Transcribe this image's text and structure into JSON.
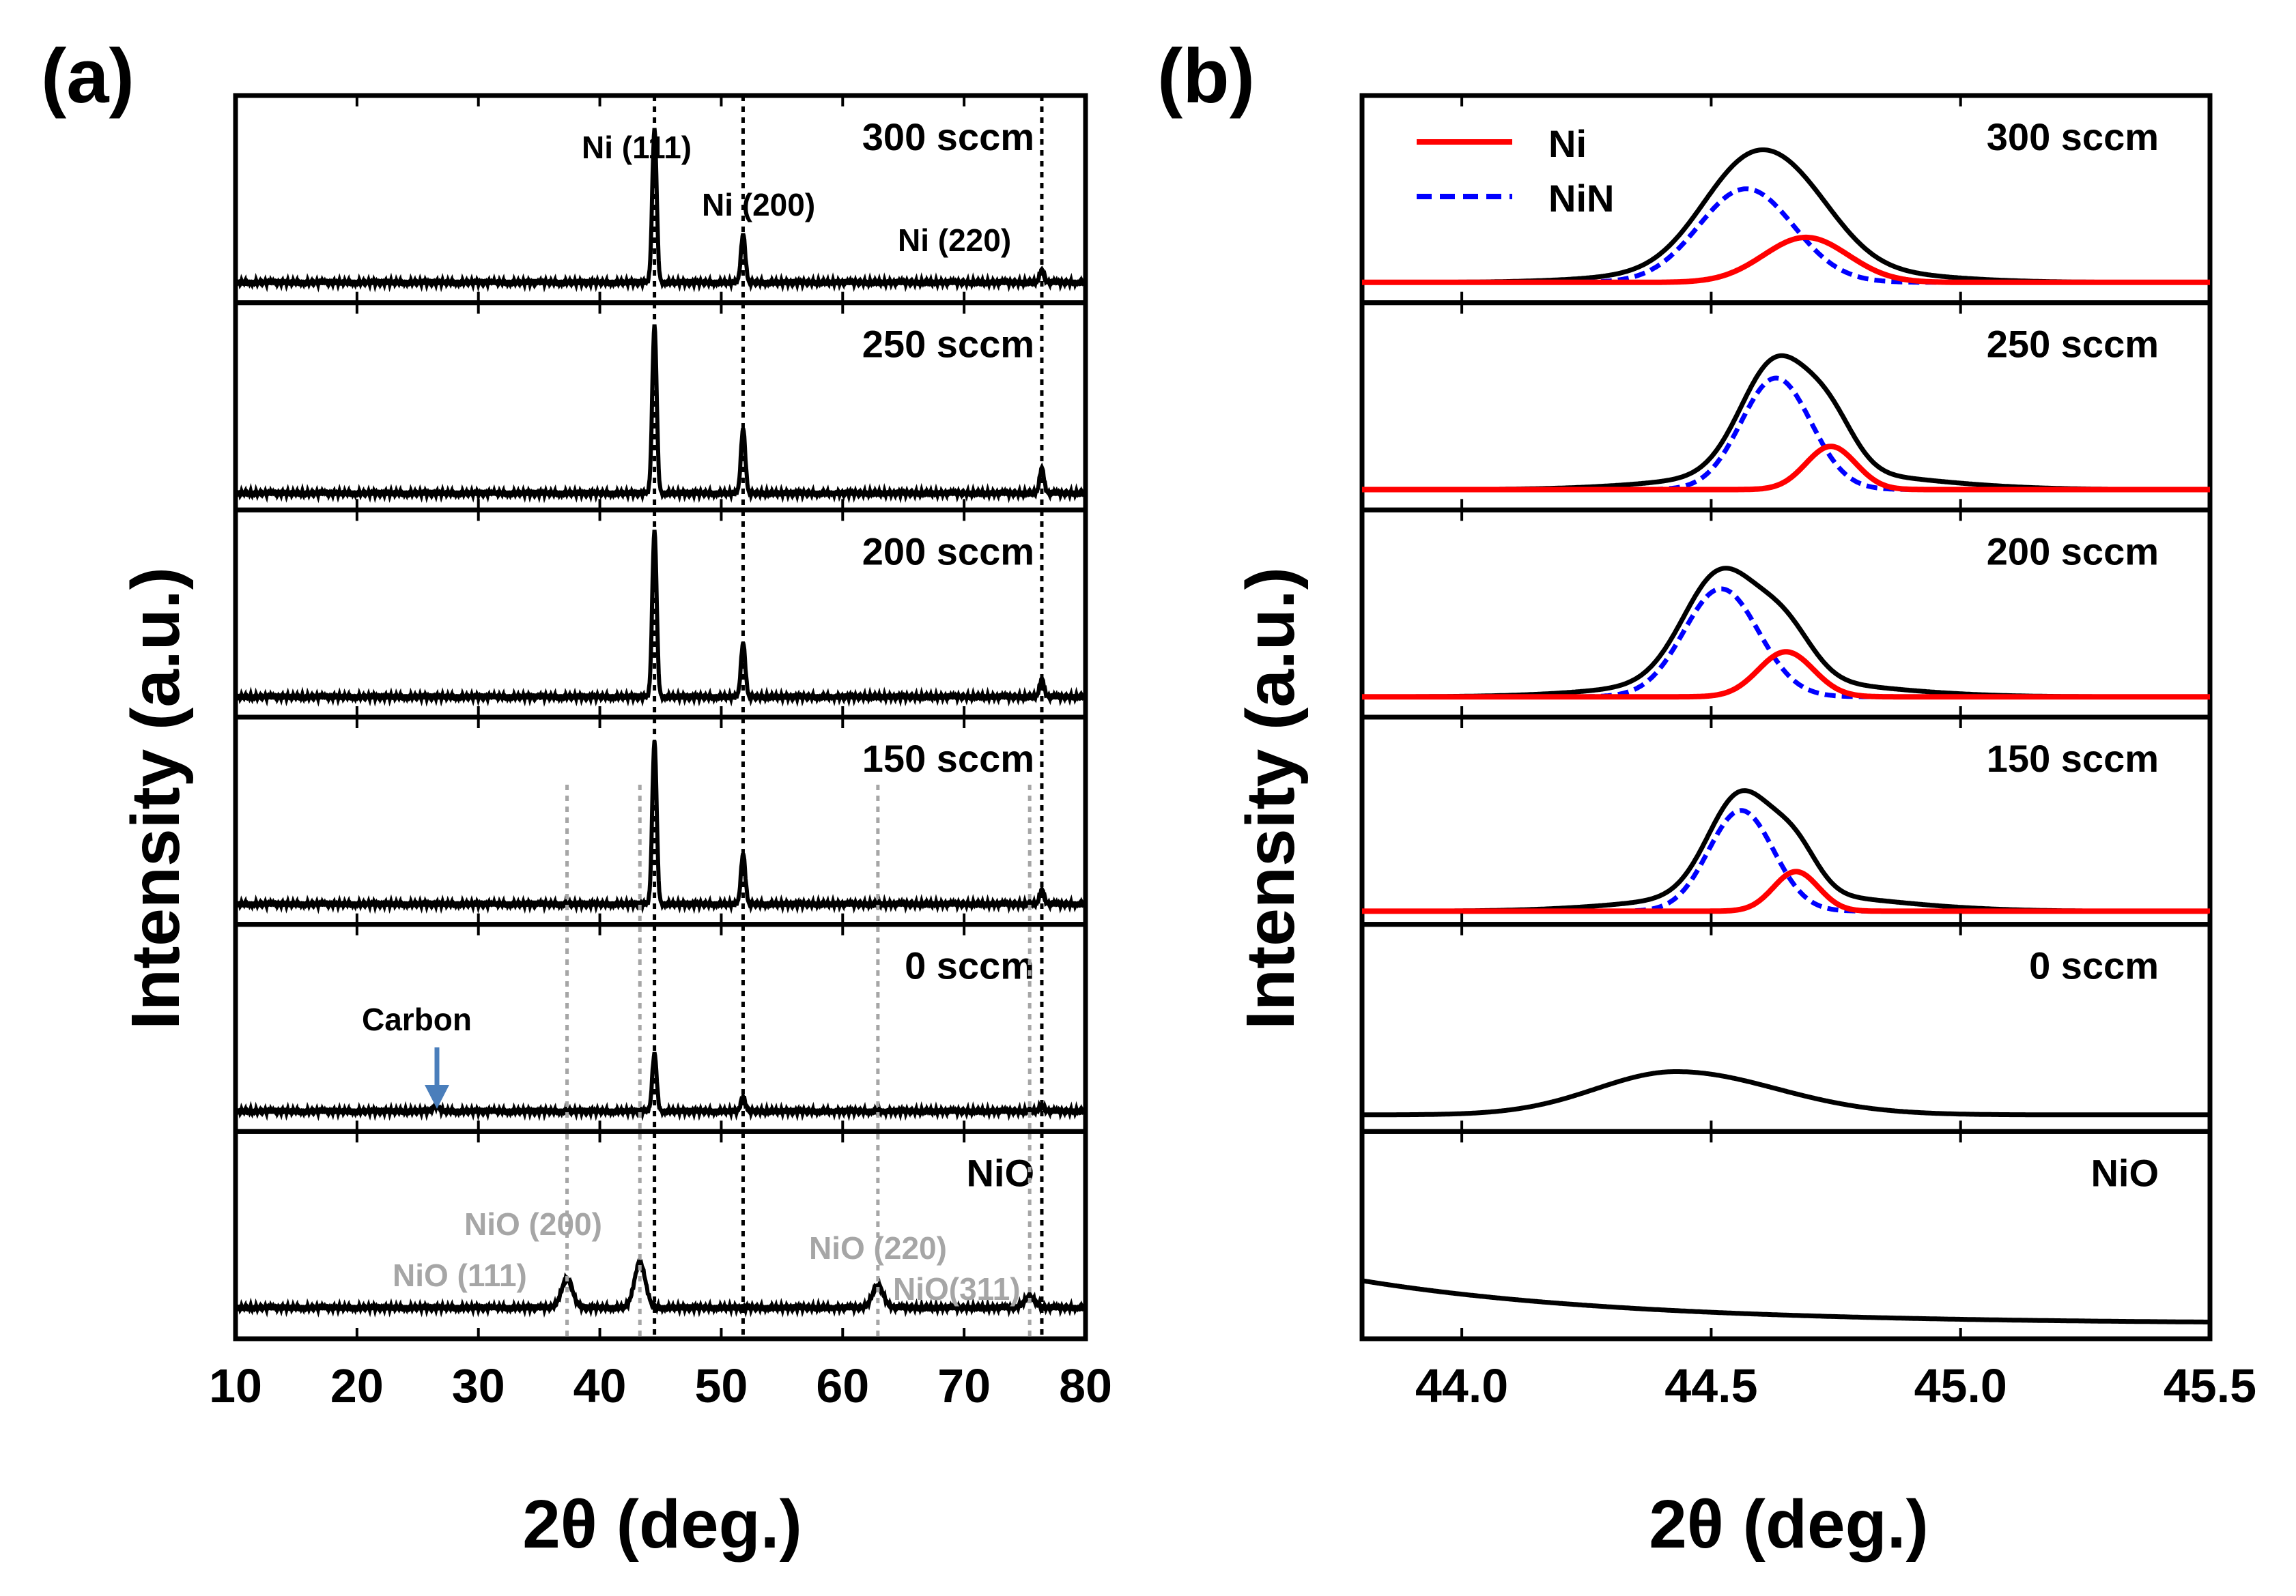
{
  "figure": {
    "panel_a_label": "(a)",
    "panel_b_label": "(b)",
    "ylabel": "Intensity (a.u.)",
    "colors": {
      "curve": "#000000",
      "ni": "#ff0000",
      "nin": "#0000ff",
      "ref": "#a6a6a6",
      "arrow": "#4a7ebb"
    }
  },
  "chart_data": [
    {
      "id": "a",
      "type": "line",
      "title": "(a)",
      "xlabel": "2θ (deg.)",
      "ylabel": "Intensity (a.u.)",
      "xlim": [
        10,
        80
      ],
      "xticks": [
        10,
        20,
        30,
        40,
        50,
        60,
        70,
        80
      ],
      "tick_labels": [
        "10",
        "20",
        "30",
        "40",
        "50",
        "60",
        "70",
        "80"
      ],
      "ni_reference_lines": [
        44.5,
        51.8,
        76.4
      ],
      "nio_reference_lines": [
        37.3,
        43.3,
        62.9,
        75.4
      ],
      "panels": [
        {
          "sample": "300 sccm",
          "baseline": 0.06,
          "peaks": [
            [
              44.5,
              0.85,
              0.18
            ],
            [
              51.8,
              0.27,
              0.18
            ],
            [
              76.4,
              0.07,
              0.18
            ]
          ]
        },
        {
          "sample": "250 sccm",
          "baseline": 0.04,
          "peaks": [
            [
              44.5,
              0.93,
              0.18
            ],
            [
              51.8,
              0.36,
              0.18
            ],
            [
              76.4,
              0.14,
              0.18
            ]
          ]
        },
        {
          "sample": "200 sccm",
          "baseline": 0.06,
          "peaks": [
            [
              44.5,
              0.92,
              0.18
            ],
            [
              51.8,
              0.3,
              0.18
            ],
            [
              76.4,
              0.1,
              0.18
            ]
          ]
        },
        {
          "sample": "150 sccm",
          "baseline": 0.06,
          "peaks": [
            [
              44.5,
              0.9,
              0.18
            ],
            [
              51.8,
              0.28,
              0.18
            ],
            [
              76.4,
              0.08,
              0.18
            ]
          ]
        },
        {
          "sample": "0 sccm",
          "baseline": 0.06,
          "peaks": [
            [
              26.5,
              0.03,
              0.25
            ],
            [
              44.5,
              0.32,
              0.18
            ],
            [
              51.8,
              0.08,
              0.18
            ],
            [
              76.4,
              0.03,
              0.2
            ]
          ]
        },
        {
          "sample": "NiO",
          "baseline": 0.12,
          "peaks": [
            [
              37.3,
              0.16,
              0.45
            ],
            [
              43.3,
              0.25,
              0.45
            ],
            [
              62.9,
              0.12,
              0.45
            ],
            [
              75.4,
              0.06,
              0.45
            ]
          ]
        }
      ],
      "annotations": {
        "ni_111": "Ni (111)",
        "ni_200": "Ni (200)",
        "ni_220": "Ni (220)",
        "carbon": "Carbon",
        "nio_111": "NiO (111)",
        "nio_200": "NiO (200)",
        "nio_220": "NiO (220)",
        "nio_311": "NiO(311)"
      }
    },
    {
      "id": "b",
      "type": "line",
      "title": "(b)",
      "xlabel": "2θ (deg.)",
      "ylabel": "Intensity (a.u.)",
      "xlim": [
        43.8,
        45.5
      ],
      "xticks": [
        44.0,
        44.5,
        45.0,
        45.5
      ],
      "tick_labels": [
        "44.0",
        "44.5",
        "45.0",
        "45.5"
      ],
      "legend": [
        {
          "name": "Ni",
          "style": "solid red"
        },
        {
          "name": "NiN",
          "style": "dashed blue"
        }
      ],
      "legend_position": "top-left",
      "panels": [
        {
          "sample": "300 sccm",
          "baseline": 0.06,
          "nin": {
            "center": 44.57,
            "height": 0.52,
            "sigma": 0.095
          },
          "ni": {
            "center": 44.69,
            "height": 0.25,
            "sigma": 0.085
          }
        },
        {
          "sample": "250 sccm",
          "baseline": 0.06,
          "nin": {
            "center": 44.63,
            "height": 0.62,
            "sigma": 0.07
          },
          "ni": {
            "center": 44.74,
            "height": 0.24,
            "sigma": 0.05
          }
        },
        {
          "sample": "200 sccm",
          "baseline": 0.06,
          "nin": {
            "center": 44.52,
            "height": 0.6,
            "sigma": 0.075
          },
          "ni": {
            "center": 44.65,
            "height": 0.25,
            "sigma": 0.055
          }
        },
        {
          "sample": "150 sccm",
          "baseline": 0.02,
          "nin": {
            "center": 44.56,
            "height": 0.56,
            "sigma": 0.065
          },
          "ni": {
            "center": 44.67,
            "height": 0.22,
            "sigma": 0.045
          }
        },
        {
          "sample": "0 sccm",
          "baseline": 0.04,
          "single": {
            "center": 44.43,
            "height": 0.24,
            "sigma_left": 0.16,
            "sigma_right": 0.2
          }
        },
        {
          "sample": "NiO",
          "baseline_start": 0.27,
          "baseline_end": 0.03
        }
      ]
    }
  ]
}
